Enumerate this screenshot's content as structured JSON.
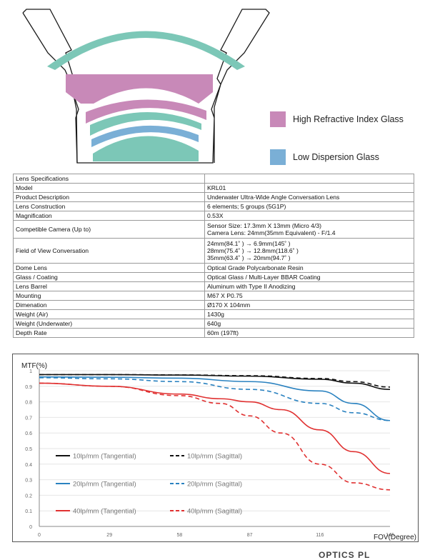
{
  "legend": {
    "high_refractive": {
      "label": "High Refractive Index Glass",
      "color": "#c889b8"
    },
    "low_dispersion": {
      "label": "Low Dispersion Glass",
      "color": "#7aafd6"
    }
  },
  "colors": {
    "teal": "#7cc7b7",
    "pink": "#c889b8",
    "blue": "#7aafd6",
    "outline": "#1a1a1a"
  },
  "specs": {
    "header": "Lens Specifications",
    "rows": [
      {
        "label": "Model",
        "value": "KRL01"
      },
      {
        "label": "Product Description",
        "value": "Underwater Ultra-Wide Angle Conversation Lens"
      },
      {
        "label": "Lens Construction",
        "value": "6 elements; 5 groups (5G1P)"
      },
      {
        "label": "Magnification",
        "value": "0.53X"
      },
      {
        "label": "Competible Camera (Up to)",
        "value": "Sensor Size: 17.3mm X 13mm (Micro 4/3)\nCamera Lens: 24mm(35mm Equivalent) - F/1.4"
      },
      {
        "label": "Field of View Conversation",
        "value": "24mm(84.1˚ ) → 6.9mm(145˚ )\n28mm(75.4˚ ) → 12.8mm(118.6˚ )\n35mm(63.4˚ ) → 20mm(94.7˚ )"
      },
      {
        "label": "Dome Lens",
        "value": "Optical Grade Polycarbonate Resin"
      },
      {
        "label": "Glass / Coating",
        "value": "Optical Glass / Multi-Layer BBAR Coating"
      },
      {
        "label": "Lens Barrel",
        "value": "Aluminum with Type II Anodizing"
      },
      {
        "label": "Mounting",
        "value": "M67 X P0.75"
      },
      {
        "label": "Dimenation",
        "value": "Ø170 X 104mm"
      },
      {
        "label": "Weight (Air)",
        "value": "1430g"
      },
      {
        "label": "Weight (Underwater)",
        "value": "640g"
      },
      {
        "label": "Depth Rate",
        "value": "60m (197ft)"
      }
    ]
  },
  "chart_data": {
    "type": "line",
    "ylabel": "MTF(%)",
    "xlabel": "FOV(Degree)",
    "x_ticks": [
      0,
      29,
      58,
      87,
      116,
      145
    ],
    "y_ticks": [
      0,
      0.1,
      0.2,
      0.3,
      0.4,
      0.5,
      0.6,
      0.7,
      0.8,
      0.9,
      1
    ],
    "xlim": [
      0,
      145
    ],
    "ylim": [
      0,
      1
    ],
    "grid": true,
    "series": [
      {
        "name": "10lp/mm (Tangential)",
        "color": "#111111",
        "dash": false,
        "x": [
          0,
          29,
          58,
          87,
          116,
          130,
          145
        ],
        "y": [
          0.975,
          0.975,
          0.972,
          0.965,
          0.945,
          0.92,
          0.88
        ]
      },
      {
        "name": "10lp/mm (Sagittal)",
        "color": "#111111",
        "dash": true,
        "x": [
          0,
          29,
          58,
          87,
          116,
          130,
          145
        ],
        "y": [
          0.975,
          0.975,
          0.973,
          0.968,
          0.95,
          0.93,
          0.895
        ]
      },
      {
        "name": "20lp/mm (Tangential)",
        "color": "#2a82c0",
        "dash": false,
        "x": [
          0,
          29,
          58,
          87,
          116,
          130,
          145
        ],
        "y": [
          0.96,
          0.958,
          0.952,
          0.93,
          0.87,
          0.79,
          0.68
        ]
      },
      {
        "name": "20lp/mm (Sagittal)",
        "color": "#2a82c0",
        "dash": true,
        "x": [
          0,
          29,
          58,
          87,
          116,
          130,
          145
        ],
        "y": [
          0.955,
          0.948,
          0.93,
          0.88,
          0.79,
          0.73,
          0.68
        ]
      },
      {
        "name": "40lp/mm (Tangential)",
        "color": "#e03131",
        "dash": false,
        "x": [
          0,
          29,
          58,
          75,
          87,
          100,
          116,
          130,
          145
        ],
        "y": [
          0.92,
          0.9,
          0.85,
          0.82,
          0.8,
          0.75,
          0.62,
          0.48,
          0.34
        ]
      },
      {
        "name": "40lp/mm (Sagittal)",
        "color": "#e03131",
        "dash": true,
        "x": [
          0,
          29,
          58,
          75,
          87,
          100,
          116,
          130,
          145
        ],
        "y": [
          0.92,
          0.9,
          0.84,
          0.79,
          0.71,
          0.6,
          0.4,
          0.28,
          0.235
        ]
      }
    ]
  },
  "logo_text": "OPTICS PL"
}
